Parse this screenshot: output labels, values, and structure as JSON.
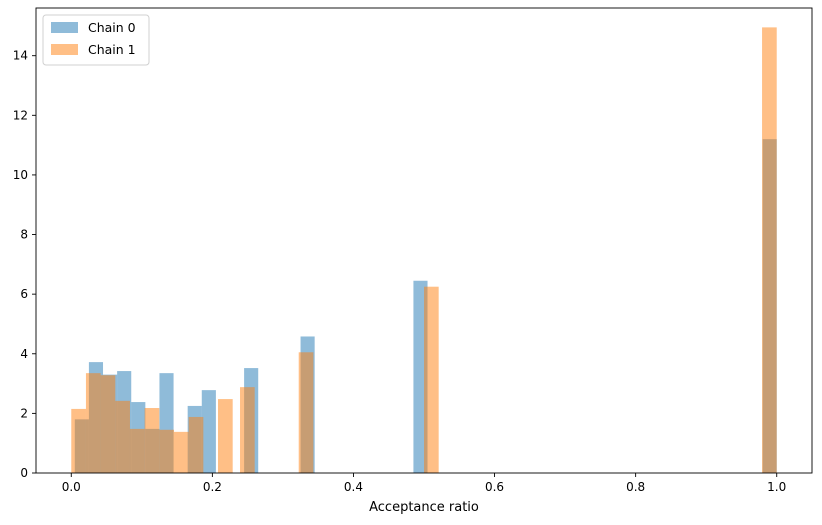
{
  "chart_data": {
    "type": "bar",
    "xlabel": "Acceptance ratio",
    "ylabel": "",
    "title": "",
    "xlim": [
      -0.05,
      1.05
    ],
    "ylim": [
      0,
      15.6
    ],
    "xticks": [
      0.0,
      0.2,
      0.4,
      0.6,
      0.8,
      1.0
    ],
    "xtick_labels": [
      "0.0",
      "0.2",
      "0.4",
      "0.6",
      "0.8",
      "1.0"
    ],
    "yticks": [
      0,
      2,
      4,
      6,
      8,
      10,
      12,
      14
    ],
    "ytick_labels": [
      "0",
      "2",
      "4",
      "6",
      "8",
      "10",
      "12",
      "14"
    ],
    "grid": false,
    "legend_position": "top-left",
    "series": [
      {
        "name": "Chain 0",
        "color": "#1f77b4",
        "opacity": 0.5,
        "bin_width": 0.02,
        "bins": [
          {
            "x": 0.005,
            "y": 1.8
          },
          {
            "x": 0.025,
            "y": 3.72
          },
          {
            "x": 0.045,
            "y": 3.3
          },
          {
            "x": 0.065,
            "y": 3.42
          },
          {
            "x": 0.085,
            "y": 2.38
          },
          {
            "x": 0.105,
            "y": 1.48
          },
          {
            "x": 0.125,
            "y": 3.35
          },
          {
            "x": 0.165,
            "y": 2.25
          },
          {
            "x": 0.185,
            "y": 2.78
          },
          {
            "x": 0.245,
            "y": 3.52
          },
          {
            "x": 0.325,
            "y": 4.58
          },
          {
            "x": 0.485,
            "y": 6.45
          },
          {
            "x": 0.98,
            "y": 11.2
          }
        ]
      },
      {
        "name": "Chain 1",
        "color": "#ff7f0e",
        "opacity": 0.5,
        "bin_width": 0.0208,
        "bins": [
          {
            "x": 0.0,
            "y": 2.15
          },
          {
            "x": 0.0208,
            "y": 3.35
          },
          {
            "x": 0.0416,
            "y": 3.28
          },
          {
            "x": 0.0624,
            "y": 2.42
          },
          {
            "x": 0.0832,
            "y": 1.48
          },
          {
            "x": 0.104,
            "y": 2.18
          },
          {
            "x": 0.1248,
            "y": 1.45
          },
          {
            "x": 0.1456,
            "y": 1.38
          },
          {
            "x": 0.1664,
            "y": 1.88
          },
          {
            "x": 0.208,
            "y": 2.48
          },
          {
            "x": 0.2392,
            "y": 2.88
          },
          {
            "x": 0.3224,
            "y": 4.05
          },
          {
            "x": 0.5,
            "y": 6.25
          },
          {
            "x": 0.9792,
            "y": 14.95
          }
        ]
      }
    ]
  }
}
